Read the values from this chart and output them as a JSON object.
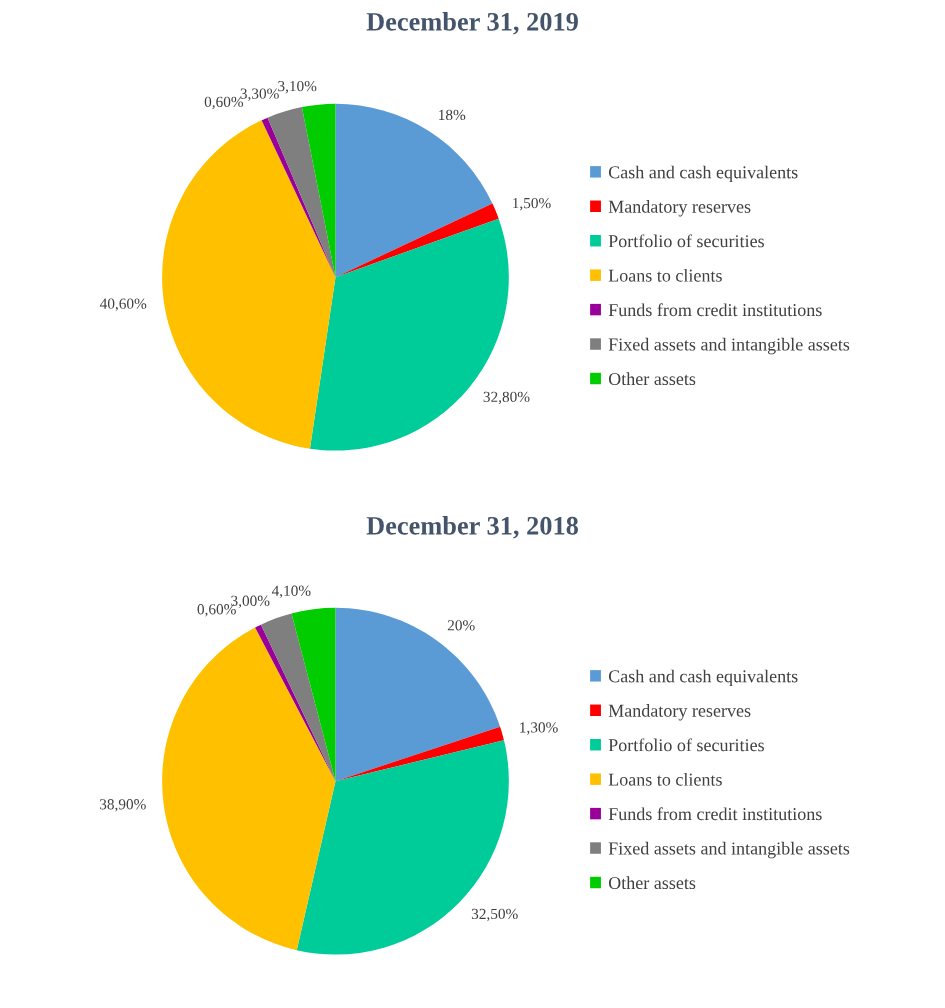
{
  "chart_data": [
    {
      "type": "pie",
      "title": "December 31, 2019",
      "categories": [
        "Cash and cash equivalents",
        "Mandatory reserves",
        "Portfolio of securities",
        "Loans to clients",
        "Funds from credit institutions",
        "Fixed assets and intangible assets",
        "Other assets"
      ],
      "values": [
        18,
        1.5,
        32.8,
        40.6,
        0.6,
        3.3,
        3.1
      ],
      "value_labels": [
        "18%",
        "1,50%",
        "32,80%",
        "40,60%",
        "0,60%",
        "3,30%",
        "3,10%"
      ],
      "colors": [
        "#5b9bd5",
        "#ff0000",
        "#00cc99",
        "#ffc000",
        "#990099",
        "#7f7f7f",
        "#00cc00"
      ],
      "legend": "right"
    },
    {
      "type": "pie",
      "title": "December 31, 2018",
      "categories": [
        "Cash and cash equivalents",
        "Mandatory reserves",
        "Portfolio of securities",
        "Loans to clients",
        "Funds from credit institutions",
        "Fixed assets and intangible assets",
        "Other assets"
      ],
      "values": [
        20,
        1.3,
        32.5,
        38.9,
        0.6,
        3.0,
        4.1
      ],
      "value_labels": [
        "20%",
        "1,30%",
        "32,50%",
        "38,90%",
        "0,60%",
        "3,00%",
        "4,10%"
      ],
      "colors": [
        "#5b9bd5",
        "#ff0000",
        "#00cc99",
        "#ffc000",
        "#990099",
        "#7f7f7f",
        "#00cc00"
      ],
      "legend": "right"
    }
  ]
}
